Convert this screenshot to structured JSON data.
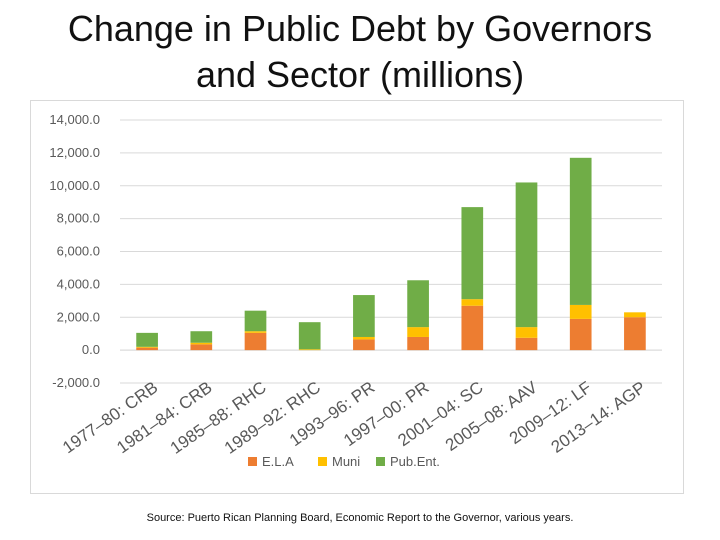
{
  "title": {
    "line1": "Change in Public Debt by Governors",
    "line2": "and Sector (millions)"
  },
  "source": "Source: Puerto Rican Planning Board, Economic Report to the Governor, various years.",
  "colors": {
    "ela": "#ed7d31",
    "muni": "#ffc000",
    "pub": "#70ad47",
    "grid": "#d9d9d9",
    "text": "#595959"
  },
  "chart_data": {
    "type": "bar",
    "stacked": true,
    "title": "Change in Public Debt by Governors and Sector (millions)",
    "categories": [
      "1977–80: CRB",
      "1981–84: CRB",
      "1985–88: RHC",
      "1989–92: RHC",
      "1993–96: PR",
      "1997–00: PR",
      "2001–04: SC",
      "2005–08: AAV",
      "2009–12: LF",
      "2013–14: AGP"
    ],
    "series": [
      {
        "name": "E.L.A",
        "color_key": "ela",
        "values": [
          150,
          350,
          1050,
          0,
          650,
          800,
          2700,
          750,
          1900,
          2000
        ]
      },
      {
        "name": "Muni",
        "color_key": "muni",
        "values": [
          50,
          100,
          100,
          50,
          150,
          600,
          400,
          650,
          850,
          300
        ]
      },
      {
        "name": "Pub.Ent.",
        "color_key": "pub",
        "values": [
          850,
          700,
          1250,
          1650,
          2550,
          2850,
          5600,
          8800,
          8950,
          0
        ]
      }
    ],
    "ylim": [
      -2000,
      14000
    ],
    "yticks": [
      -2000,
      0,
      2000,
      4000,
      6000,
      8000,
      10000,
      12000,
      14000
    ],
    "ytick_labels": [
      "-2,000.0",
      "0.0",
      "2,000.0",
      "4,000.0",
      "6,000.0",
      "8,000.0",
      "10,000.0",
      "12,000.0",
      "14,000.0"
    ],
    "grid": true,
    "legend_position": "bottom",
    "xlabel": "",
    "ylabel": ""
  }
}
